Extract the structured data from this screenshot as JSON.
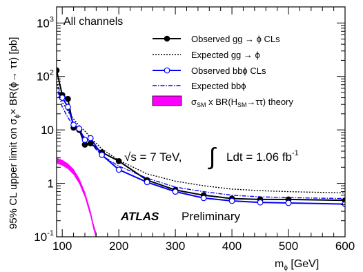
{
  "chart_data": {
    "type": "line",
    "xlabel": "m",
    "xlabel_sub": "ϕ",
    "xlabel_unit": "[GeV]",
    "ylabel": "95% CL upper limit on σ",
    "ylabel_sub": "ϕ",
    "ylabel_rest": "× BR(ϕ→ ττ) [pb]",
    "xlim": [
      90,
      600
    ],
    "ylim": [
      0.1,
      2000
    ],
    "yscale": "log",
    "x_ticks": [
      "100",
      "200",
      "300",
      "400",
      "500",
      "600"
    ],
    "y_ticks": [
      {
        "base": "10",
        "exp": "-1",
        "value": 0.1
      },
      {
        "base": "1",
        "exp": "",
        "value": 1
      },
      {
        "base": "10",
        "exp": "",
        "value": 10
      },
      {
        "base": "10",
        "exp": "2",
        "value": 100
      },
      {
        "base": "10",
        "exp": "3",
        "value": 1000
      }
    ],
    "channel_label": "All channels",
    "energy_label": "√s = 7 TeV,",
    "lumi_label": "∫ Ldt = 1.06 fb",
    "lumi_exp": "-1",
    "atlas_label": "ATLAS",
    "prelim_label": "Preliminary",
    "legend_position": "top-right",
    "series": [
      {
        "name": "Observed gg → ϕ CLs",
        "style": "solid",
        "marker": "filled-circle",
        "color": "#000000",
        "x": [
          90,
          100,
          110,
          120,
          130,
          140,
          150,
          170,
          200,
          250,
          300,
          350,
          400,
          450,
          500,
          600
        ],
        "y": [
          130,
          45,
          38,
          11,
          10,
          5.3,
          5.6,
          3.8,
          2.6,
          1.15,
          0.75,
          0.6,
          0.52,
          0.5,
          0.5,
          0.48
        ]
      },
      {
        "name": "Expected gg → ϕ",
        "style": "dotted",
        "marker": "none",
        "color": "#000000",
        "x": [
          90,
          100,
          110,
          120,
          130,
          140,
          150,
          170,
          200,
          250,
          300,
          350,
          400,
          450,
          500,
          600
        ],
        "y": [
          80,
          33,
          22,
          16,
          12,
          9.5,
          7.2,
          4.4,
          2.7,
          1.5,
          1.1,
          0.9,
          0.78,
          0.73,
          0.7,
          0.66
        ]
      },
      {
        "name": "Observed bbϕ CLs",
        "style": "solid",
        "marker": "open-circle",
        "color": "#0000ff",
        "x": [
          90,
          100,
          110,
          120,
          130,
          140,
          150,
          170,
          200,
          250,
          300,
          350,
          400,
          450,
          500,
          600
        ],
        "y": [
          55,
          40,
          27,
          12.5,
          10.5,
          6.5,
          7,
          3.4,
          1.8,
          1.05,
          0.7,
          0.53,
          0.47,
          0.44,
          0.43,
          0.41
        ]
      },
      {
        "name": "Expected bbϕ",
        "style": "dashdot",
        "marker": "none",
        "color": "#0000ff",
        "x": [
          90,
          100,
          110,
          120,
          130,
          140,
          150,
          170,
          200,
          250,
          300,
          350,
          400,
          450,
          500,
          600
        ],
        "y": [
          60,
          27,
          17,
          12,
          9.3,
          7.2,
          5.6,
          3.3,
          2.1,
          1.25,
          0.85,
          0.7,
          0.6,
          0.56,
          0.54,
          0.52
        ]
      },
      {
        "name": "σ_SM x BR(H_SM→ττ) theory",
        "style": "band",
        "marker": "none",
        "color": "#ff00ff",
        "x": [
          90,
          100,
          110,
          120,
          130,
          140,
          150,
          155,
          160
        ],
        "y_lo": [
          2.35,
          2.15,
          1.85,
          1.45,
          0.98,
          0.55,
          0.24,
          0.14,
          0.09
        ],
        "y_hi": [
          3.0,
          2.75,
          2.35,
          1.85,
          1.25,
          0.7,
          0.31,
          0.18,
          0.12
        ]
      }
    ]
  }
}
